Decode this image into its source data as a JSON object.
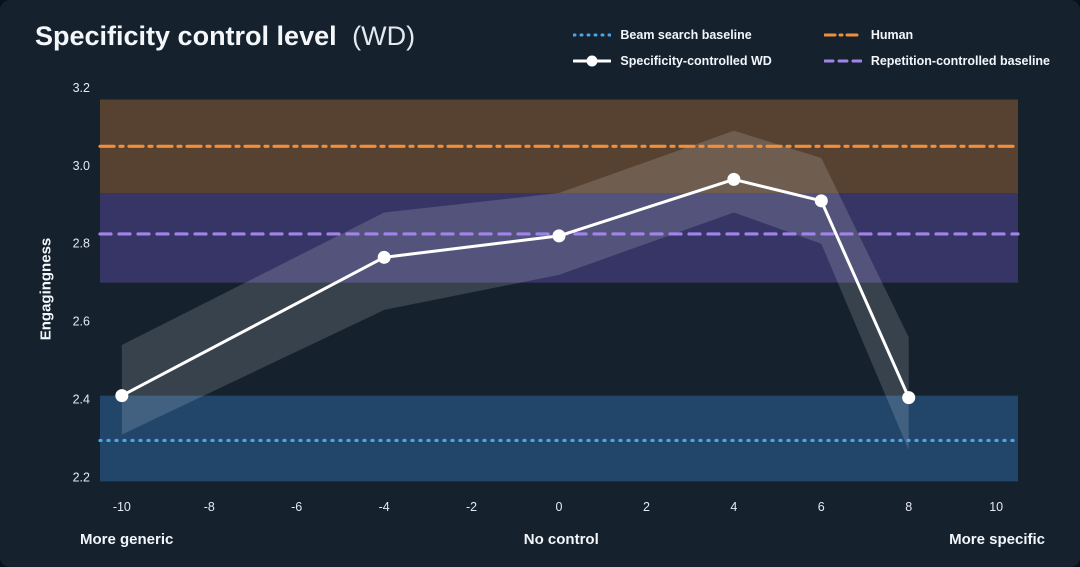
{
  "page": {
    "background": "#16212e"
  },
  "header": {
    "title": "Specificity control level",
    "title_suffix": "(WD)"
  },
  "legend": {
    "items": [
      {
        "label": "Beam search baseline",
        "color": "#4ba6e8",
        "dash": "1 6",
        "marker": false
      },
      {
        "label": "Specificity-controlled WD",
        "color": "#ffffff",
        "dash": "",
        "marker": true
      },
      {
        "label": "Human",
        "color": "#ef8e3b",
        "dash": "10 5 2 5",
        "marker": false
      },
      {
        "label": "Repetition-controlled baseline",
        "color": "#a184ea",
        "dash": "8 6",
        "marker": false
      }
    ]
  },
  "chart_data": {
    "type": "line",
    "title": "Specificity control level (WD)",
    "ylabel": "Engagingness",
    "xlabel_annotations": {
      "left": "More generic",
      "center": "No control",
      "right": "More specific"
    },
    "xticks": [
      -10,
      -8,
      -6,
      -4,
      -2,
      0,
      2,
      4,
      6,
      8,
      10
    ],
    "yticks": [
      2.2,
      2.4,
      2.6,
      2.8,
      3.0,
      3.2
    ],
    "xlim": [
      -10.5,
      10.5
    ],
    "ylim": [
      2.155,
      3.215
    ],
    "grid": false,
    "legend_position": "top-right",
    "series": [
      {
        "name": "Specificity-controlled WD",
        "color": "#ffffff",
        "x": [
          -10,
          -4,
          0,
          4,
          6,
          8
        ],
        "y": [
          2.41,
          2.765,
          2.82,
          2.965,
          2.91,
          2.405
        ],
        "band_upper": [
          2.54,
          2.88,
          2.93,
          3.09,
          3.02,
          2.56
        ],
        "band_lower": [
          2.31,
          2.63,
          2.72,
          2.88,
          2.8,
          2.27
        ],
        "band_fill": "rgba(235,240,245,0.16)"
      }
    ],
    "hlines": [
      {
        "name": "Human",
        "y": 3.05,
        "band": [
          2.93,
          3.17
        ],
        "color": "#ef8e3b",
        "band_fill": "rgba(239,142,59,0.30)",
        "dash": "14 6 3 6"
      },
      {
        "name": "Repetition-controlled baseline",
        "y": 2.825,
        "band": [
          2.7,
          2.93
        ],
        "color": "#a184ea",
        "band_fill": "rgba(132,100,230,0.30)",
        "dash": "11 8"
      },
      {
        "name": "Beam search baseline",
        "y": 2.295,
        "band": [
          2.19,
          2.41
        ],
        "color": "#4ba6e8",
        "band_fill": "rgba(56,130,205,0.38)",
        "dash": "1 7"
      }
    ]
  }
}
